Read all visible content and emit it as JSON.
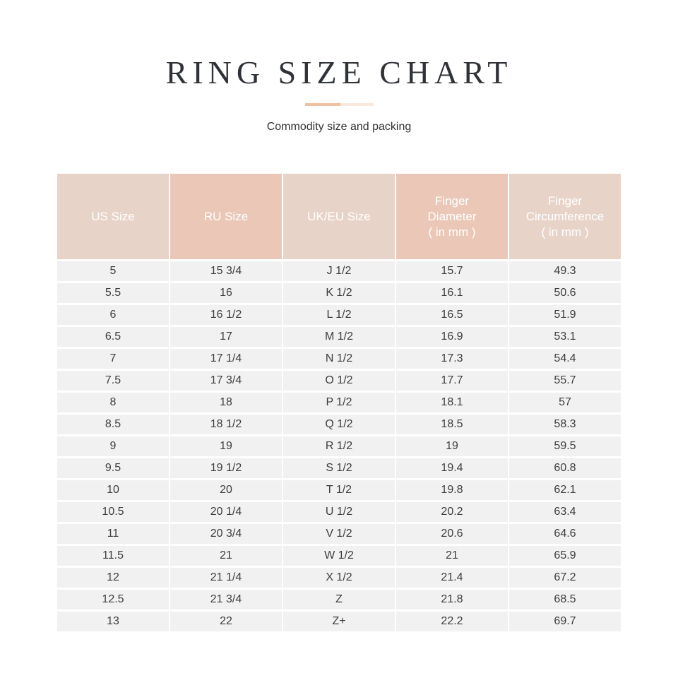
{
  "page": {
    "title": "RING SIZE CHART",
    "subtitle": "Commodity size and packing"
  },
  "colors": {
    "title_color": "#2f3237",
    "header_light": "#e8d3c8",
    "header_dark": "#eac7b6",
    "row_bg": "#f1f1f1",
    "cell_text": "#3d3d3d",
    "divider_dark": "#f0c2a4",
    "divider_light": "#f9e8dc"
  },
  "table": {
    "headers": [
      {
        "name": "us-size",
        "tone": "light",
        "label": "US Size"
      },
      {
        "name": "ru-size",
        "tone": "dark",
        "label": "RU Size"
      },
      {
        "name": "uk-eu-size",
        "tone": "light",
        "label": "UK/EU Size"
      },
      {
        "name": "finger-diameter",
        "tone": "dark",
        "label": "Finger\nDiameter\n( in mm )"
      },
      {
        "name": "finger-circumference",
        "tone": "light",
        "label": "Finger\nCircumference\n( in mm )"
      }
    ],
    "rows": [
      [
        "5",
        "15 3/4",
        "J 1/2",
        "15.7",
        "49.3"
      ],
      [
        "5.5",
        "16",
        "K 1/2",
        "16.1",
        "50.6"
      ],
      [
        "6",
        "16 1/2",
        "L 1/2",
        "16.5",
        "51.9"
      ],
      [
        "6.5",
        "17",
        "M 1/2",
        "16.9",
        "53.1"
      ],
      [
        "7",
        "17 1/4",
        "N 1/2",
        "17.3",
        "54.4"
      ],
      [
        "7.5",
        "17 3/4",
        "O 1/2",
        "17.7",
        "55.7"
      ],
      [
        "8",
        "18",
        "P 1/2",
        "18.1",
        "57"
      ],
      [
        "8.5",
        "18 1/2",
        "Q 1/2",
        "18.5",
        "58.3"
      ],
      [
        "9",
        "19",
        "R 1/2",
        "19",
        "59.5"
      ],
      [
        "9.5",
        "19 1/2",
        "S 1/2",
        "19.4",
        "60.8"
      ],
      [
        "10",
        "20",
        "T 1/2",
        "19.8",
        "62.1"
      ],
      [
        "10.5",
        "20 1/4",
        "U 1/2",
        "20.2",
        "63.4"
      ],
      [
        "11",
        "20 3/4",
        "V 1/2",
        "20.6",
        "64.6"
      ],
      [
        "11.5",
        "21",
        "W 1/2",
        "21",
        "65.9"
      ],
      [
        "12",
        "21 1/4",
        "X 1/2",
        "21.4",
        "67.2"
      ],
      [
        "12.5",
        "21 3/4",
        "Z",
        "21.8",
        "68.5"
      ],
      [
        "13",
        "22",
        "Z+",
        "22.2",
        "69.7"
      ]
    ]
  },
  "chart_data": {
    "type": "table",
    "title": "RING SIZE CHART",
    "subtitle": "Commodity size and packing",
    "columns": [
      "US Size",
      "RU Size",
      "UK/EU Size",
      "Finger Diameter ( in mm )",
      "Finger Circumference ( in mm )"
    ],
    "rows": [
      [
        "5",
        "15 3/4",
        "J 1/2",
        "15.7",
        "49.3"
      ],
      [
        "5.5",
        "16",
        "K 1/2",
        "16.1",
        "50.6"
      ],
      [
        "6",
        "16 1/2",
        "L 1/2",
        "16.5",
        "51.9"
      ],
      [
        "6.5",
        "17",
        "M 1/2",
        "16.9",
        "53.1"
      ],
      [
        "7",
        "17 1/4",
        "N 1/2",
        "17.3",
        "54.4"
      ],
      [
        "7.5",
        "17 3/4",
        "O 1/2",
        "17.7",
        "55.7"
      ],
      [
        "8",
        "18",
        "P 1/2",
        "18.1",
        "57"
      ],
      [
        "8.5",
        "18 1/2",
        "Q 1/2",
        "18.5",
        "58.3"
      ],
      [
        "9",
        "19",
        "R 1/2",
        "19",
        "59.5"
      ],
      [
        "9.5",
        "19 1/2",
        "S 1/2",
        "19.4",
        "60.8"
      ],
      [
        "10",
        "20",
        "T 1/2",
        "19.8",
        "62.1"
      ],
      [
        "10.5",
        "20 1/4",
        "U 1/2",
        "20.2",
        "63.4"
      ],
      [
        "11",
        "20 3/4",
        "V 1/2",
        "20.6",
        "64.6"
      ],
      [
        "11.5",
        "21",
        "W 1/2",
        "21",
        "65.9"
      ],
      [
        "12",
        "21 1/4",
        "X 1/2",
        "21.4",
        "67.2"
      ],
      [
        "12.5",
        "21 3/4",
        "Z",
        "21.8",
        "68.5"
      ],
      [
        "13",
        "22",
        "Z+",
        "22.2",
        "69.7"
      ]
    ]
  }
}
